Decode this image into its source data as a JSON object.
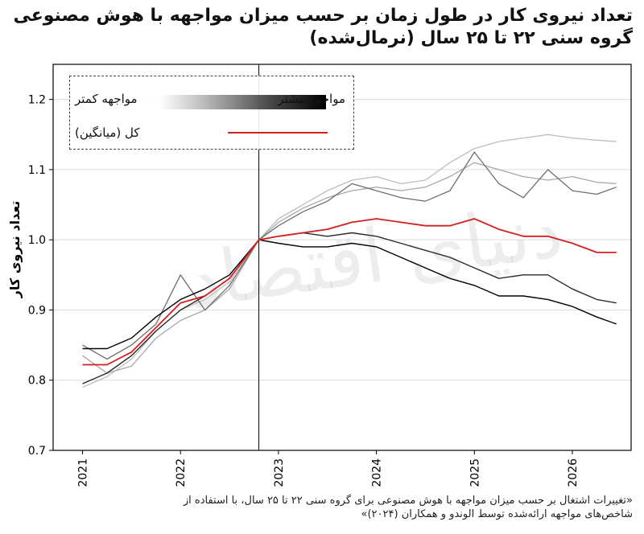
{
  "title_lines": [
    "تعداد نیروی کار در طول زمان بر حسب میزان مواجهه با هوش مصنوعی",
    "گروه سنی ۲۲ تا ۲۵ سال (نرمال‌شده)"
  ],
  "legend": {
    "gradient_left_label": "مواجهه کمتر",
    "gradient_right_label": "مواجهه بیشتر",
    "average_label": "کل (میانگین)"
  },
  "watermark": "دنیای اقتصاد",
  "note_lines": [
    "«تغییرات اشتغال بر حسب میزان مواجهه با هوش مصنوعی برای گروه سنی ۲۲ تا ۲۵ سال، با استفاده از",
    "شاخص‌های مواجهه ارائه‌شده توسط الوندو و همکاران (۲۰۲۴)»"
  ],
  "chart_data": {
    "type": "line",
    "title": "تعداد نیروی کار در طول زمان بر حسب میزان مواجهه با هوش مصنوعی — گروه سنی ۲۲ تا ۲۵ سال (نرمال‌شده)",
    "xlabel": "",
    "ylabel": "تعداد نیروی کار",
    "x_ticks": [
      "2021",
      "2022",
      "2023",
      "2024",
      "2025",
      "2026"
    ],
    "y_ticks": [
      "0.7",
      "0.8",
      "0.9",
      "1.0",
      "1.1",
      "1.2"
    ],
    "xlim": [
      2020.7,
      2026.6
    ],
    "ylim": [
      0.7,
      1.25
    ],
    "grid": "horizontal",
    "reference_line_x": 2022.8,
    "legend_position": "top-left",
    "x": [
      2021.0,
      2021.25,
      2021.5,
      2021.75,
      2022.0,
      2022.25,
      2022.5,
      2022.8,
      2023.0,
      2023.25,
      2023.5,
      2023.75,
      2024.0,
      2024.25,
      2024.5,
      2024.75,
      2025.0,
      2025.25,
      2025.5,
      2025.75,
      2026.0,
      2026.25,
      2026.45
    ],
    "series": [
      {
        "name": "",
        "color": "#bdbdbd",
        "width": 1.3,
        "values": [
          0.79,
          0.805,
          0.83,
          0.87,
          0.9,
          0.915,
          0.94,
          1.0,
          1.03,
          1.05,
          1.07,
          1.085,
          1.09,
          1.08,
          1.085,
          1.11,
          1.13,
          1.14,
          1.145,
          1.15,
          1.145,
          1.142,
          1.14
        ]
      },
      {
        "name": "",
        "color": "#a8a8a8",
        "width": 1.3,
        "values": [
          0.835,
          0.81,
          0.82,
          0.86,
          0.885,
          0.9,
          0.93,
          1.0,
          1.025,
          1.045,
          1.06,
          1.07,
          1.075,
          1.07,
          1.075,
          1.09,
          1.11,
          1.1,
          1.09,
          1.085,
          1.09,
          1.082,
          1.08
        ]
      },
      {
        "name": "",
        "color": "#6f6f6f",
        "width": 1.3,
        "values": [
          0.85,
          0.83,
          0.85,
          0.88,
          0.95,
          0.9,
          0.935,
          1.0,
          1.02,
          1.04,
          1.055,
          1.08,
          1.07,
          1.06,
          1.055,
          1.07,
          1.125,
          1.08,
          1.06,
          1.1,
          1.07,
          1.065,
          1.075
        ]
      },
      {
        "name": "",
        "color": "#2a2a2a",
        "width": 1.4,
        "values": [
          0.795,
          0.81,
          0.835,
          0.87,
          0.9,
          0.92,
          0.945,
          1.0,
          1.005,
          1.01,
          1.005,
          1.01,
          1.005,
          0.995,
          0.985,
          0.975,
          0.96,
          0.945,
          0.95,
          0.95,
          0.93,
          0.915,
          0.91
        ]
      },
      {
        "name": "",
        "color": "#000000",
        "width": 1.4,
        "values": [
          0.845,
          0.845,
          0.86,
          0.89,
          0.915,
          0.93,
          0.95,
          1.0,
          0.995,
          0.99,
          0.99,
          0.995,
          0.99,
          0.975,
          0.96,
          0.945,
          0.935,
          0.92,
          0.92,
          0.915,
          0.905,
          0.89,
          0.88
        ]
      },
      {
        "name": "کل (میانگین)",
        "color": "#d62020",
        "width": 1.8,
        "values": [
          0.822,
          0.822,
          0.84,
          0.875,
          0.91,
          0.92,
          0.945,
          1.0,
          1.005,
          1.01,
          1.015,
          1.025,
          1.03,
          1.025,
          1.02,
          1.02,
          1.03,
          1.015,
          1.005,
          1.005,
          0.995,
          0.982,
          0.982
        ]
      }
    ]
  }
}
